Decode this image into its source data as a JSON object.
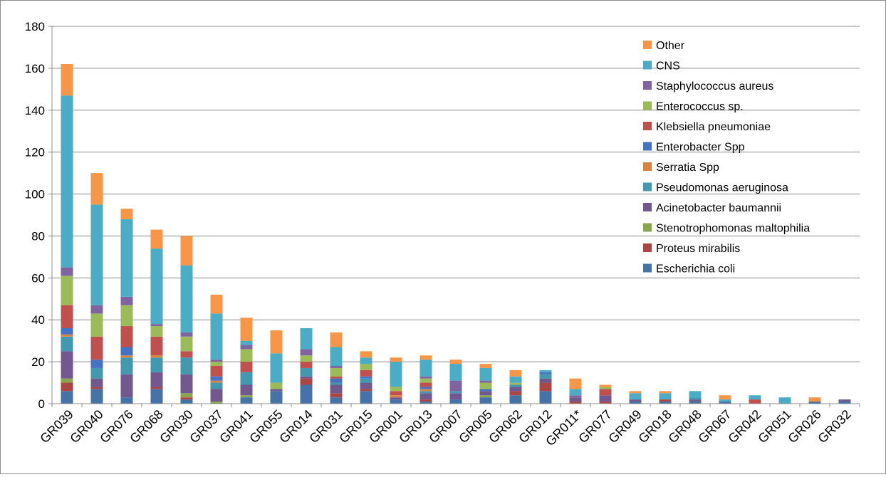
{
  "chart_data": {
    "type": "bar",
    "stacked": true,
    "grid": true,
    "legend_position": "right-top",
    "ylim": [
      0,
      180
    ],
    "yticks": [
      0,
      20,
      40,
      60,
      80,
      100,
      120,
      140,
      160,
      180
    ],
    "categories": [
      "GR039",
      "GR040",
      "GR076",
      "GR068",
      "GR030",
      "GR037",
      "GR041",
      "GR055",
      "GR014",
      "GR031",
      "GR015",
      "GR001",
      "GR013",
      "GR007",
      "GR005",
      "GR062",
      "GR012",
      "GR011*",
      "GR077",
      "GR049",
      "GR018",
      "GR048",
      "GR067",
      "GR042",
      "GR051",
      "GR026",
      "GR032"
    ],
    "series": [
      {
        "name": "Escherichia coli",
        "color": "#4572A7",
        "values": [
          6,
          7,
          3,
          7,
          2,
          0,
          3,
          6,
          9,
          3,
          6,
          2,
          1,
          2,
          3,
          4,
          6,
          0,
          0,
          1,
          1,
          1,
          1,
          0,
          0,
          1,
          1
        ]
      },
      {
        "name": "Proteus mirabilis",
        "color": "#AA4643",
        "values": [
          4,
          1,
          0,
          1,
          1,
          0,
          0,
          0,
          3,
          2,
          1,
          0,
          1,
          0,
          0,
          2,
          4,
          1,
          1,
          0,
          1,
          0,
          0,
          0,
          0,
          0,
          0
        ]
      },
      {
        "name": "Stenotrophomonas maltophilia",
        "color": "#89A54E",
        "values": [
          2,
          0,
          0,
          0,
          2,
          1,
          1,
          0,
          0,
          0,
          0,
          0,
          0,
          0,
          1,
          0,
          0,
          0,
          0,
          0,
          0,
          0,
          0,
          0,
          0,
          0,
          0
        ]
      },
      {
        "name": "Acinetobacter baumannii",
        "color": "#71588F",
        "values": [
          13,
          4,
          11,
          7,
          9,
          6,
          5,
          1,
          1,
          4,
          3,
          1,
          3,
          3,
          2,
          2,
          2,
          2,
          3,
          1,
          0,
          1,
          0,
          0,
          0,
          0,
          1
        ]
      },
      {
        "name": "Pseudomonas aeruginosa",
        "color": "#4198AF",
        "values": [
          7,
          5,
          8,
          7,
          8,
          3,
          6,
          0,
          4,
          1,
          2,
          0,
          1,
          1,
          0,
          1,
          2,
          0,
          0,
          0,
          0,
          1,
          0,
          0,
          0,
          0,
          0
        ]
      },
      {
        "name": "Serratia Spp",
        "color": "#DB843D",
        "values": [
          1,
          0,
          1,
          1,
          0,
          1,
          0,
          0,
          0,
          0,
          0,
          1,
          1,
          0,
          0,
          0,
          0,
          0,
          0,
          0,
          0,
          0,
          0,
          0,
          0,
          0,
          0
        ]
      },
      {
        "name": "Enterobacter Spp",
        "color": "#4572C4",
        "values": [
          3,
          4,
          4,
          0,
          0,
          2,
          0,
          0,
          0,
          2,
          1,
          0,
          1,
          0,
          1,
          0,
          1,
          0,
          0,
          0,
          0,
          0,
          0,
          0,
          0,
          0,
          0
        ]
      },
      {
        "name": "Klebsiella pneumoniae",
        "color": "#C0504D",
        "values": [
          11,
          11,
          10,
          9,
          3,
          5,
          5,
          0,
          3,
          1,
          3,
          2,
          2,
          0,
          0,
          0,
          0,
          0,
          3,
          0,
          0,
          0,
          0,
          2,
          0,
          0,
          0
        ]
      },
      {
        "name": "Enterococcus sp.",
        "color": "#9BBB59",
        "values": [
          14,
          11,
          10,
          5,
          7,
          2,
          6,
          3,
          3,
          4,
          3,
          2,
          2,
          0,
          3,
          1,
          0,
          0,
          1,
          0,
          0,
          0,
          0,
          0,
          0,
          0,
          0
        ]
      },
      {
        "name": "Staphylococcus aureus",
        "color": "#8064A2",
        "values": [
          4,
          4,
          4,
          1,
          2,
          1,
          2,
          0,
          3,
          1,
          0,
          0,
          1,
          5,
          1,
          0,
          0,
          1,
          0,
          0,
          0,
          0,
          0,
          0,
          0,
          0,
          0
        ]
      },
      {
        "name": "CNS",
        "color": "#4BACC6",
        "values": [
          82,
          48,
          37,
          36,
          32,
          22,
          2,
          14,
          10,
          9,
          3,
          12,
          8,
          8,
          6,
          3,
          1,
          3,
          0,
          3,
          3,
          3,
          1,
          2,
          3,
          0,
          0
        ]
      },
      {
        "name": "Other",
        "color": "#F79646",
        "values": [
          15,
          15,
          5,
          9,
          14,
          9,
          11,
          11,
          0,
          7,
          3,
          2,
          2,
          2,
          2,
          3,
          0,
          5,
          1,
          1,
          1,
          0,
          2,
          0,
          0,
          2,
          0
        ]
      }
    ]
  }
}
